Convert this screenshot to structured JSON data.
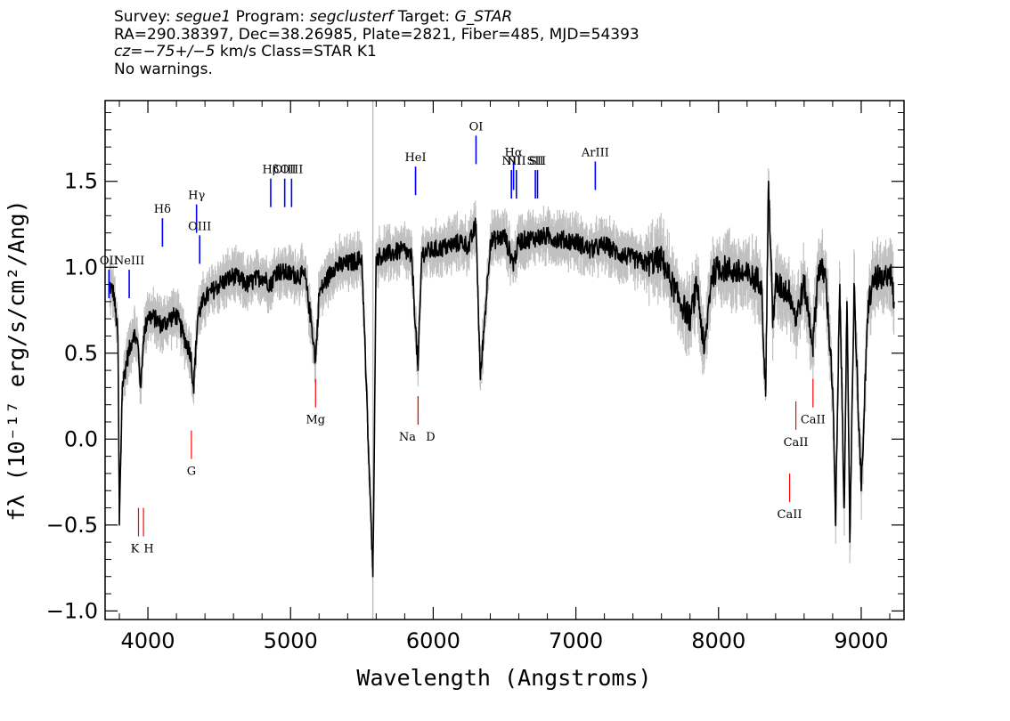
{
  "header": {
    "line1": {
      "survey_label": "Survey: ",
      "survey": "segue1",
      "program_label": " Program: ",
      "program": "segclusterf",
      "target_label": " Target: ",
      "target": "G_STAR"
    },
    "line2": "RA=290.38397, Dec=38.26985, Plate=2821, Fiber=485, MJD=54393",
    "line3": {
      "cz": "cz",
      "cz_value": "=−75+/−5",
      "rest": " km/s Class=STAR K1"
    },
    "line4": "No warnings."
  },
  "chart_data": {
    "type": "line",
    "xlabel": "Wavelength (Angstroms)",
    "ylabel": "fλ (10⁻¹⁷ erg/s/cm²/Ang)",
    "xlim": [
      3700,
      9300
    ],
    "ylim": [
      -1.05,
      1.97
    ],
    "x_ticks": [
      4000,
      5000,
      6000,
      7000,
      8000,
      9000
    ],
    "x_tick_labels": [
      "4000",
      "5000",
      "6000",
      "7000",
      "8000",
      "9000"
    ],
    "y_ticks": [
      -1.0,
      -0.5,
      0.0,
      0.5,
      1.0,
      1.5
    ],
    "y_tick_labels": [
      "−1.0",
      "−0.5",
      "0.0",
      "0.5",
      "1.0",
      "1.5"
    ],
    "grid": false,
    "series": [
      {
        "color": "#000000",
        "x": [
          3730,
          3760,
          3790,
          3800,
          3820,
          3850,
          3880,
          3900,
          3930,
          3950,
          3970,
          4000,
          4050,
          4100,
          4150,
          4200,
          4250,
          4300,
          4320,
          4350,
          4400,
          4450,
          4500,
          4600,
          4700,
          4800,
          4861,
          4900,
          5000,
          5100,
          5150,
          5175,
          5200,
          5250,
          5300,
          5400,
          5500,
          5577,
          5600,
          5700,
          5800,
          5850,
          5893,
          5920,
          6000,
          6100,
          6200,
          6250,
          6300,
          6330,
          6400,
          6500,
          6563,
          6600,
          6700,
          6800,
          6900,
          7000,
          7100,
          7200,
          7300,
          7400,
          7500,
          7600,
          7700,
          7800,
          7850,
          7900,
          7950,
          8000,
          8100,
          8200,
          8300,
          8330,
          8350,
          8380,
          8400,
          8500,
          8542,
          8600,
          8662,
          8700,
          8750,
          8800,
          8820,
          8850,
          8880,
          8900,
          8920,
          8950,
          9000,
          9050,
          9100,
          9150,
          9200,
          9230
        ],
        "values": [
          0.9,
          0.85,
          0.6,
          -0.5,
          0.3,
          0.45,
          0.55,
          0.62,
          0.55,
          0.3,
          0.6,
          0.72,
          0.7,
          0.66,
          0.7,
          0.72,
          0.6,
          0.5,
          0.3,
          0.72,
          0.82,
          0.86,
          0.9,
          0.95,
          0.9,
          0.95,
          0.9,
          0.98,
          0.96,
          0.95,
          0.65,
          0.45,
          0.85,
          0.92,
          1.0,
          1.02,
          1.05,
          -0.8,
          1.06,
          1.08,
          1.1,
          1.05,
          0.4,
          1.08,
          1.1,
          1.12,
          1.15,
          1.12,
          1.25,
          0.35,
          1.15,
          1.18,
          1.02,
          1.15,
          1.17,
          1.18,
          1.16,
          1.15,
          1.1,
          1.13,
          1.08,
          1.05,
          1.02,
          1.05,
          0.85,
          0.7,
          0.9,
          0.5,
          0.95,
          1.0,
          0.98,
          0.95,
          0.92,
          0.25,
          1.5,
          0.7,
          0.9,
          0.85,
          0.7,
          0.9,
          0.55,
          1.0,
          0.95,
          0.3,
          -0.5,
          0.9,
          -0.4,
          0.8,
          -0.6,
          0.9,
          -0.3,
          0.8,
          0.95,
          0.9,
          1.0,
          0.8
        ]
      }
    ],
    "emission_lines": [
      {
        "label": "OII",
        "x": 3727,
        "y": 0.82
      },
      {
        "label": "NeIII",
        "x": 3869,
        "y": 0.82
      },
      {
        "label": "Hδ",
        "x": 4102,
        "y": 1.12
      },
      {
        "label": "Hγ",
        "x": 4341,
        "y": 1.2
      },
      {
        "label": "OIII",
        "x": 4363,
        "y": 1.02
      },
      {
        "label": "Hβ",
        "x": 4861,
        "y": 1.35
      },
      {
        "label": "OIII",
        "x": 4959,
        "y": 1.35
      },
      {
        "label": "OIII",
        "x": 5007,
        "y": 1.35
      },
      {
        "label": "HeI",
        "x": 5876,
        "y": 1.42
      },
      {
        "label": "OI",
        "x": 6300,
        "y": 1.6
      },
      {
        "label": "NII",
        "x": 6548,
        "y": 1.4
      },
      {
        "label": "Hα",
        "x": 6563,
        "y": 1.45
      },
      {
        "label": "NII",
        "x": 6583,
        "y": 1.4
      },
      {
        "label": "SII",
        "x": 6716,
        "y": 1.4
      },
      {
        "label": "SII",
        "x": 6731,
        "y": 1.4
      },
      {
        "label": "ArIII",
        "x": 7136,
        "y": 1.45
      }
    ],
    "absorption_lines": [
      {
        "label": "K",
        "x": 3934,
        "y": -0.4
      },
      {
        "label": "H",
        "x": 3969,
        "y": -0.4
      },
      {
        "label": "G",
        "x": 4305,
        "y": 0.05
      },
      {
        "label": "Mg",
        "x": 5175,
        "y": 0.35
      },
      {
        "label": "Na",
        "x": 5894,
        "y": 0.25
      },
      {
        "label": "D",
        "x": 5894,
        "y": 0.25
      },
      {
        "label": "CaII",
        "x": 8498,
        "y": -0.2
      },
      {
        "label": "CaII",
        "x": 8542,
        "y": 0.22
      },
      {
        "label": "CaII",
        "x": 8662,
        "y": 0.35
      }
    ],
    "colors": {
      "spectrum": "#000000",
      "error": "#c0c0c0",
      "emission": "#0000ff",
      "absorption": "#ff0000",
      "label_tick": "#000000"
    }
  }
}
